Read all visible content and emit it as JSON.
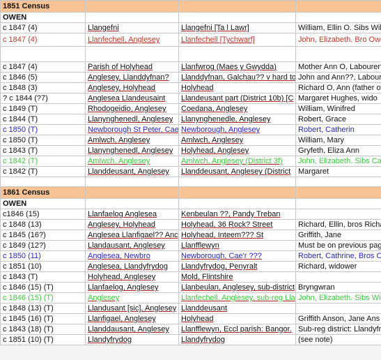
{
  "sections": [
    {
      "title": "1851 Census",
      "surname": "OWEN",
      "rows": [
        {
          "cells": [
            "c 1847 (4)",
            "Llangefni",
            "Llangefni [Ta l Lawr]",
            "William, Ellin O. Sibs Williar"
          ]
        },
        {
          "color": "#c0392b",
          "cells": [
            "c 1847 (4)",
            "Llanfechell, Anglesey",
            "Llanfechell [Tychwarf]",
            "John, Elizabeth. Bro Owe"
          ]
        },
        {
          "cells": [
            "c 1847 (4)",
            "Parish of Holyhead",
            "Llanfwrog (Maes y Gwydda)",
            "Mother Ann O, Labourer'"
          ]
        },
        {
          "cells": [
            "c 1846 (5)",
            "Anglesey, Llanddyfnan?",
            "Llanddyfnan, Galchau?? v hard to",
            "John and Ann??, Labourer"
          ]
        },
        {
          "cells": [
            "c 1848 (3)",
            "Anglesey, Holyhead",
            "Holyhead",
            "Richard O, Ann (father o"
          ]
        },
        {
          "cells": [
            "? c 1844 (?7)",
            "Anglesea Llandeusaint",
            "Llandeusant part (District 10b) [C",
            "Margaret Hughes, wido"
          ]
        },
        {
          "cells": [
            "c 1849 (T)",
            "Rhodogeidio, Anglesey",
            "Coedana, Anglesey",
            "William, Winifred"
          ]
        },
        {
          "cells": [
            "c 1844 (T)",
            "Llanynghenedl, Anglesey",
            "Llanynghenedle, Anglesey",
            "Robert, Grace"
          ]
        },
        {
          "color": "#2424c8",
          "cells": [
            "c 1850 (T)",
            "Newborough St Peter, Cae",
            "Newborough, Anglesey",
            "Robert, Catherin"
          ]
        },
        {
          "cells": [
            "c 1850 (T)",
            "Amlwch, Anglesey",
            "Amlwch, Anglesey",
            "William, Mary"
          ]
        },
        {
          "cells": [
            "c 1843 (T)",
            "Llanynghenedl, Anglesey",
            "Holyhead, Anglesey",
            "Gryfeth, Eliza Ann"
          ]
        },
        {
          "color": "#3cc83c",
          "cells": [
            "c 1842 (T)",
            "Amlwch, Anglesey",
            "Amlwch, Anglesey (District 3f)",
            "John, Elizabeth. Sibs Cat"
          ]
        },
        {
          "cells": [
            "c 1842 (T)",
            "Llanddeusant, Anglesey",
            "Llanddeusant, Anglesey (District",
            "Margaret"
          ]
        }
      ]
    },
    {
      "title": "1861 Census",
      "surname": "OWEN",
      "rows": [
        {
          "cells": [
            "c1846 (15)",
            "Llanfaelog Anglesea",
            "Kenbeulan ??, Pandy Treban",
            null
          ]
        },
        {
          "cells": [
            "c 1848 (13)",
            "Anglesey, Holyhead",
            "Holyhead, 36 Rock? Street",
            "Richard, Ellin, bros Richa"
          ]
        },
        {
          "cells": [
            "c 1845 (16?)",
            "Anglesea Llanfigael?? Anc",
            "Holyhead, Inteem??? St",
            "Griffith, Jane"
          ]
        },
        {
          "cells": [
            "c 1849 (12?)",
            "Llandausant, Anglesey",
            "Llanfflewyn",
            "Must be on previous pag"
          ]
        },
        {
          "color": "#2424c8",
          "cells": [
            "c 1850 (11)",
            "Anglesea, Newbro",
            "Newborough, Cae'r ???",
            "Robert, Cathrine, Bros O"
          ]
        },
        {
          "cells": [
            "c 1851 (10)",
            "Anglesea, Llandyfrydog",
            "Llandyfrydog, Penyralt",
            "Richard, widower"
          ]
        },
        {
          "cells": [
            "c 1843 (T)",
            "Holyhead, Anglesey",
            "Mold, Flintshire",
            null
          ]
        },
        {
          "cells": [
            "c 1846 (15) (T)",
            "Llanfaelog, Anglesey",
            "Llanbeulan, Anglesey, sub-district",
            "Bryngwran"
          ]
        },
        {
          "color": "#3cc83c",
          "cells": [
            "c 1846 (15) (T)",
            "Anglesey",
            "Llanfechell, Anglesey, sub-reg Lla",
            "John, Elizabeth. Sibs Will"
          ]
        },
        {
          "cells": [
            "c 1848 (13) (T)",
            "Llandusant [sic], Anglesey",
            "Llanddeusant",
            null
          ]
        },
        {
          "cells": [
            "c 1845 (16) (T)",
            "Llanfigael, Anglesey",
            "Holyhead",
            "Griffith Anson, Jane Ans"
          ]
        },
        {
          "cells": [
            "c 1843 (18) (T)",
            "Llanddausant, Anglesey",
            "Llanfflewyn, Eccl parish: Bangor.",
            "Sub-reg district: Llandyfr"
          ]
        },
        {
          "cells": [
            "c 1851 (10) (T)",
            "Llandyfrydog",
            "Llandyfrydog",
            "(see note)"
          ]
        }
      ]
    }
  ]
}
